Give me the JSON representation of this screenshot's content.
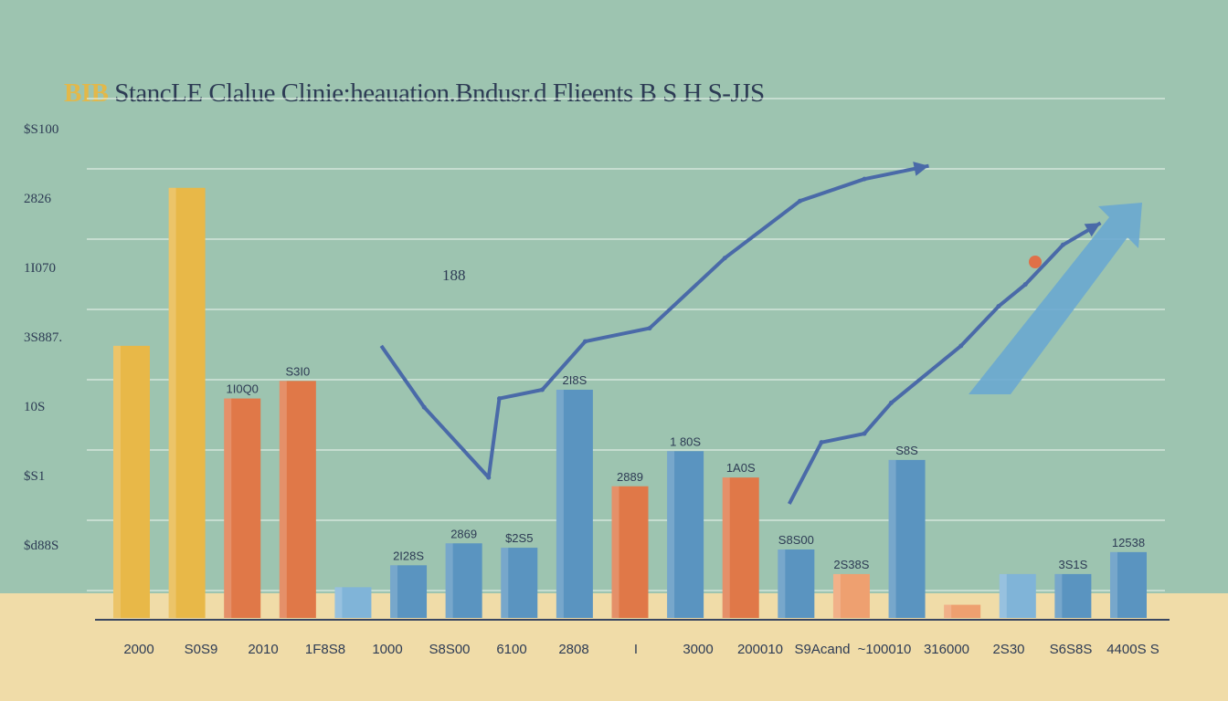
{
  "title": {
    "accent": "BIB",
    "rest": "StancLE Clalue Clinie:heauation.Bndusr.d Flieents B S H S-JJS"
  },
  "colors": {
    "background": "#9dc4b0",
    "floor": "#f0dca8",
    "yellow": "#e8b848",
    "orange": "#e07848",
    "light_orange": "#eea070",
    "blue": "#5a94c0",
    "light_blue": "#80b4d8",
    "line": "#4a6aa8"
  },
  "chart_data": {
    "type": "bar",
    "title": "BIB StancLE Clalue Clinie:heauation.Bndusr.d Flieents B S H S-JJS",
    "ylim": [
      0,
      600
    ],
    "y_tick_labels": [
      "$S100",
      "2826",
      "1I070",
      "3S887.",
      "10S",
      "$S1",
      "$d88S"
    ],
    "x_tick_labels": [
      "2000",
      "S0S9",
      "2010",
      "1F8S8",
      "1000",
      "S8S00",
      "6100",
      "2808",
      "I",
      "3000",
      "200010",
      "S9Acand",
      "~100010",
      "316000",
      "2S30",
      "S6S8S",
      "4400S S"
    ],
    "bars": [
      {
        "color": "yellow",
        "value": 310,
        "label": ""
      },
      {
        "color": "yellow",
        "value": 490,
        "label": ""
      },
      {
        "color": "orange",
        "value": 250,
        "label": "1I0Q0"
      },
      {
        "color": "orange",
        "value": 270,
        "label": "S3I0"
      },
      {
        "color": "light_blue",
        "value": 35,
        "label": ""
      },
      {
        "color": "blue",
        "value": 60,
        "label": "2I28S"
      },
      {
        "color": "blue",
        "value": 85,
        "label": "2869"
      },
      {
        "color": "blue",
        "value": 80,
        "label": "$2S5"
      },
      {
        "color": "blue",
        "value": 260,
        "label": "2I8S"
      },
      {
        "color": "orange",
        "value": 150,
        "label": "2889"
      },
      {
        "color": "blue",
        "value": 190,
        "label": "1 80S"
      },
      {
        "color": "orange",
        "value": 160,
        "label": "1A0S"
      },
      {
        "color": "blue",
        "value": 78,
        "label": "S8S00"
      },
      {
        "color": "light_orange",
        "value": 50,
        "label": "2S38S"
      },
      {
        "color": "blue",
        "value": 180,
        "label": "S8S"
      },
      {
        "color": "light_orange",
        "value": 15,
        "label": ""
      },
      {
        "color": "light_blue",
        "value": 50,
        "label": ""
      },
      {
        "color": "blue",
        "value": 50,
        "label": "3S1S"
      },
      {
        "color": "blue",
        "value": 75,
        "label": "12538"
      }
    ],
    "series": [
      {
        "type": "line",
        "x": [
          0.27,
          0.31,
          0.37,
          0.38,
          0.42,
          0.46,
          0.52,
          0.59,
          0.66,
          0.72,
          0.78
        ],
        "y": [
          310,
          240,
          160,
          250,
          260,
          315,
          330,
          410,
          475,
          500,
          515
        ]
      },
      {
        "type": "line",
        "x": [
          0.65,
          0.68,
          0.72,
          0.745,
          0.81,
          0.845,
          0.87,
          0.905,
          0.94
        ],
        "y": [
          130,
          200,
          210,
          245,
          310,
          355,
          380,
          425,
          450
        ]
      }
    ],
    "annotations": [
      "188"
    ],
    "grid": true
  }
}
